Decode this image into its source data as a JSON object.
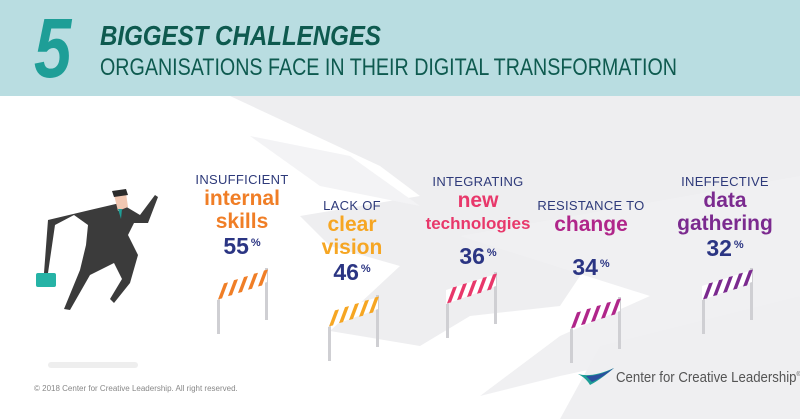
{
  "header": {
    "number": "5",
    "title": "BIGGEST CHALLENGES",
    "subtitle": "ORGANISATIONS FACE IN THEIR DIGITAL TRANSFORMATION"
  },
  "colors": {
    "header_bg": "#b9dde1",
    "accent_teal": "#1e9e97",
    "title_dark": "#0e5a4f",
    "pct_navy": "#2b3583"
  },
  "challenges": [
    {
      "line1": "INSUFFICIENT",
      "line2": "internal",
      "line3": "skills",
      "value": "55",
      "unit": "%",
      "color": "#f07e26"
    },
    {
      "line1": "LACK OF",
      "line2": "clear",
      "line3": "vision",
      "value": "46",
      "unit": "%",
      "color": "#f6a623"
    },
    {
      "line1": "INTEGRATING",
      "line2": "new",
      "line3": "technologies",
      "value": "36",
      "unit": "%",
      "color": "#e8386b"
    },
    {
      "line1": "RESISTANCE TO",
      "line2": "change",
      "line3": "",
      "value": "34",
      "unit": "%",
      "color": "#b0268a"
    },
    {
      "line1": "INEFFECTIVE",
      "line2": "data",
      "line3": "gathering",
      "value": "32",
      "unit": "%",
      "color": "#7b2a8f"
    }
  ],
  "footer": {
    "copyright": "© 2018 Center for Creative Leadership. All right reserved.",
    "logo_text": "Center for Creative Leadership",
    "logo_mark": "®"
  }
}
